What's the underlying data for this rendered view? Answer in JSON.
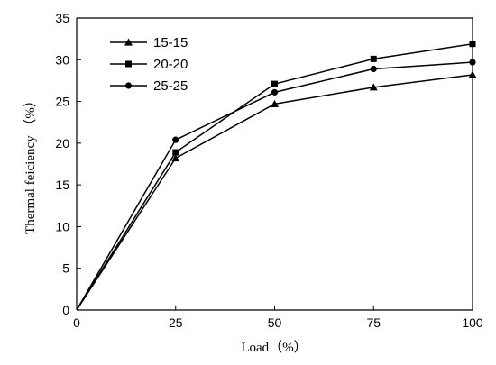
{
  "chart_data": {
    "type": "line",
    "xlabel": "Load（%）",
    "ylabel": "Thermal feiciency （%）",
    "x": [
      0,
      25,
      50,
      75,
      100
    ],
    "xlim": [
      0,
      100
    ],
    "ylim": [
      0,
      35
    ],
    "xticks": [
      "0",
      "25",
      "50",
      "75",
      "100"
    ],
    "yticks": [
      "0",
      "5",
      "10",
      "15",
      "20",
      "25",
      "30",
      "35"
    ],
    "grid": false,
    "legend_position": "top-left",
    "series": [
      {
        "name": "15-15",
        "marker": "triangle",
        "values": [
          0,
          18.2,
          24.7,
          26.7,
          28.2
        ]
      },
      {
        "name": "20-20",
        "marker": "square",
        "values": [
          0,
          18.9,
          27.1,
          30.1,
          31.9
        ]
      },
      {
        "name": "25-25",
        "marker": "circle",
        "values": [
          0,
          20.4,
          26.1,
          28.9,
          29.7
        ]
      }
    ]
  }
}
